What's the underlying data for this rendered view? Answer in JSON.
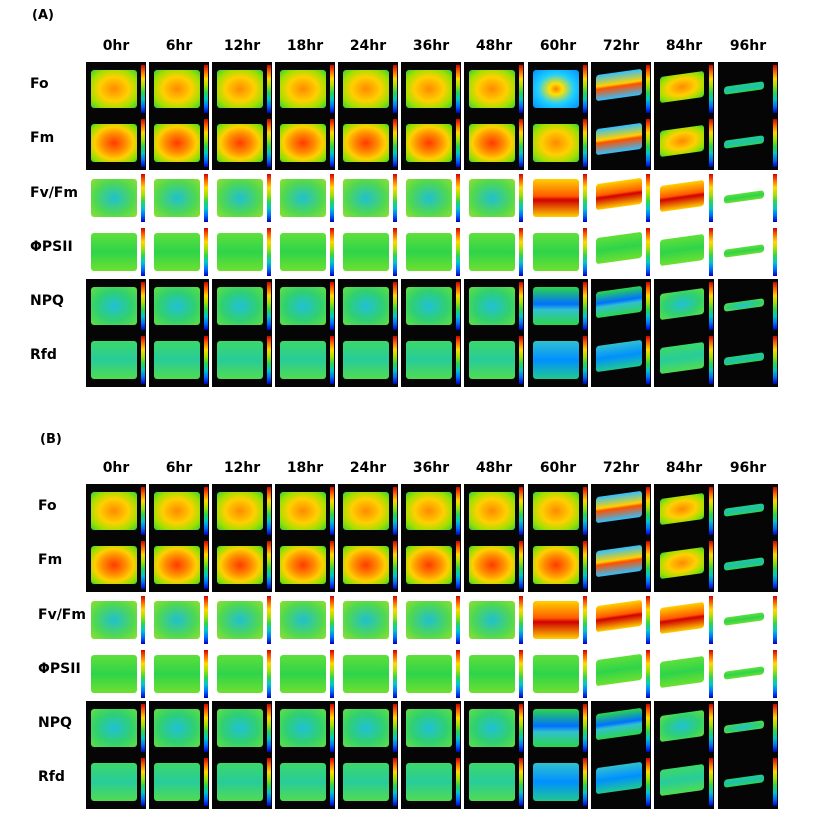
{
  "panels": [
    {
      "label": "(A)",
      "timepoints": [
        "0hr",
        "6hr",
        "12hr",
        "18hr",
        "24hr",
        "36hr",
        "48hr",
        "60hr",
        "72hr",
        "84hr",
        "96hr"
      ],
      "parameters": [
        "Fo",
        "Fm",
        "Fv/Fm",
        "ΦPSII",
        "NPQ",
        "Rfd"
      ]
    },
    {
      "label": "(B)",
      "timepoints": [
        "0hr",
        "6hr",
        "12hr",
        "18hr",
        "24hr",
        "36hr",
        "48hr",
        "60hr",
        "72hr",
        "84hr",
        "96hr"
      ],
      "parameters": [
        "Fo",
        "Fm",
        "Fv/Fm",
        "ΦPSII",
        "NPQ",
        "Rfd"
      ]
    }
  ],
  "colormap": [
    "#d00000",
    "#ff6a00",
    "#ffd800",
    "#a8e000",
    "#2cd64a",
    "#00c8c8",
    "#0070ff",
    "#0000c0"
  ]
}
